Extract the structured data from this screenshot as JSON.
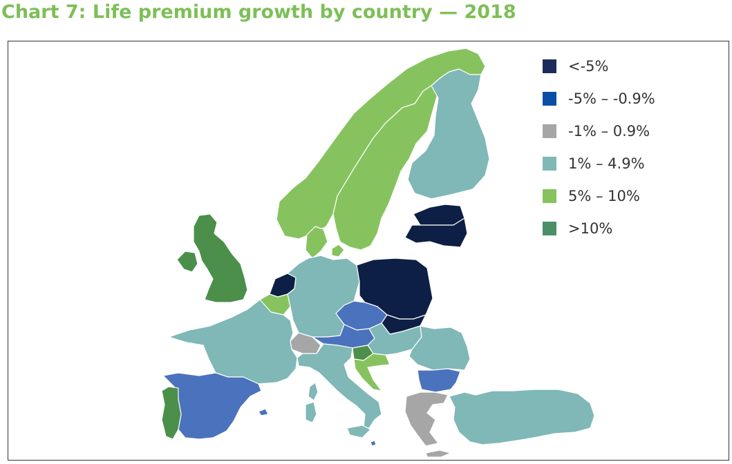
{
  "title": "Chart 7: Life premium growth by country — 2018",
  "legend": [
    {
      "label": "<-5%",
      "color": "#1c2c5a"
    },
    {
      "label": "-5% – -0.9%",
      "color": "#0a4fa6"
    },
    {
      "label": "-1% – 0.9%",
      "color": "#a6a6a6"
    },
    {
      "label": "1% – 4.9%",
      "color": "#7fb8b6"
    },
    {
      "label": "5% – 10%",
      "color": "#86c35e"
    },
    {
      "label": ">10%",
      "color": "#4b8f66"
    }
  ],
  "map_colors": {
    "dark_navy": "#0d1f45",
    "medium_blue": "#4a72bd",
    "grey": "#a6a6a6",
    "teal": "#7fb8b6",
    "light_green": "#86c35e",
    "dark_green": "#4b8f4a"
  },
  "countries": [
    {
      "name": "Norway",
      "class": "5% – 10%"
    },
    {
      "name": "Sweden",
      "class": "5% – 10%"
    },
    {
      "name": "Finland",
      "class": "1% – 4.9%"
    },
    {
      "name": "Estonia",
      "class": "<-5%"
    },
    {
      "name": "Latvia",
      "class": "<-5%"
    },
    {
      "name": "Denmark",
      "class": "5% – 10%"
    },
    {
      "name": "United Kingdom",
      "class": ">10%"
    },
    {
      "name": "Ireland",
      "class": ">10%"
    },
    {
      "name": "Netherlands",
      "class": "<-5%"
    },
    {
      "name": "Belgium",
      "class": "5% – 10%"
    },
    {
      "name": "Germany",
      "class": "1% – 4.9%"
    },
    {
      "name": "Poland",
      "class": "<-5%"
    },
    {
      "name": "Czech Republic",
      "class": "-5% – -0.9%"
    },
    {
      "name": "Slovakia",
      "class": "<-5%"
    },
    {
      "name": "Austria",
      "class": "-5% – -0.9%"
    },
    {
      "name": "Switzerland",
      "class": "-1% – 0.9%"
    },
    {
      "name": "France",
      "class": "1% – 4.9%"
    },
    {
      "name": "Spain",
      "class": "-5% – -0.9%"
    },
    {
      "name": "Portugal",
      "class": ">10%"
    },
    {
      "name": "Italy",
      "class": "1% – 4.9%"
    },
    {
      "name": "Slovenia",
      "class": ">10%"
    },
    {
      "name": "Croatia",
      "class": "5% – 10%"
    },
    {
      "name": "Hungary",
      "class": "1% – 4.9%"
    },
    {
      "name": "Romania",
      "class": "1% – 4.9%"
    },
    {
      "name": "Bulgaria",
      "class": "-5% – -0.9%"
    },
    {
      "name": "Greece",
      "class": "-1% – 0.9%"
    },
    {
      "name": "Turkey",
      "class": "1% – 4.9%"
    },
    {
      "name": "Malta",
      "class": "-5% – -0.9%"
    }
  ]
}
